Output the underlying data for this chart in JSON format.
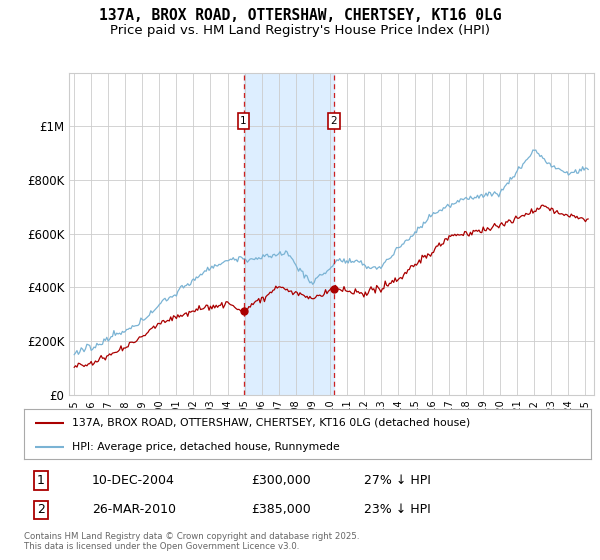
{
  "title": "137A, BROX ROAD, OTTERSHAW, CHERTSEY, KT16 0LG",
  "subtitle": "Price paid vs. HM Land Registry's House Price Index (HPI)",
  "title_fontsize": 10.5,
  "subtitle_fontsize": 9.5,
  "hpi_color": "#7ab3d4",
  "price_color": "#aa0000",
  "vertical_line_color": "#cc2222",
  "shaded_region_color": "#ddeeff",
  "background_color": "#ffffff",
  "grid_color": "#cccccc",
  "ylim": [
    0,
    1200000
  ],
  "yticks": [
    0,
    200000,
    400000,
    600000,
    800000,
    1000000
  ],
  "ytick_labels": [
    "£0",
    "£200K",
    "£400K",
    "£600K",
    "£800K",
    "£1M"
  ],
  "purchase1_date": 2004.94,
  "purchase1_price": 300000,
  "purchase1_label": "1",
  "purchase2_date": 2010.23,
  "purchase2_price": 385000,
  "purchase2_label": "2",
  "legend_line1": "137A, BROX ROAD, OTTERSHAW, CHERTSEY, KT16 0LG (detached house)",
  "legend_line2": "HPI: Average price, detached house, Runnymede",
  "table_row1": [
    "1",
    "10-DEC-2004",
    "£300,000",
    "27% ↓ HPI"
  ],
  "table_row2": [
    "2",
    "26-MAR-2010",
    "£385,000",
    "23% ↓ HPI"
  ],
  "footnote": "Contains HM Land Registry data © Crown copyright and database right 2025.\nThis data is licensed under the Open Government Licence v3.0."
}
